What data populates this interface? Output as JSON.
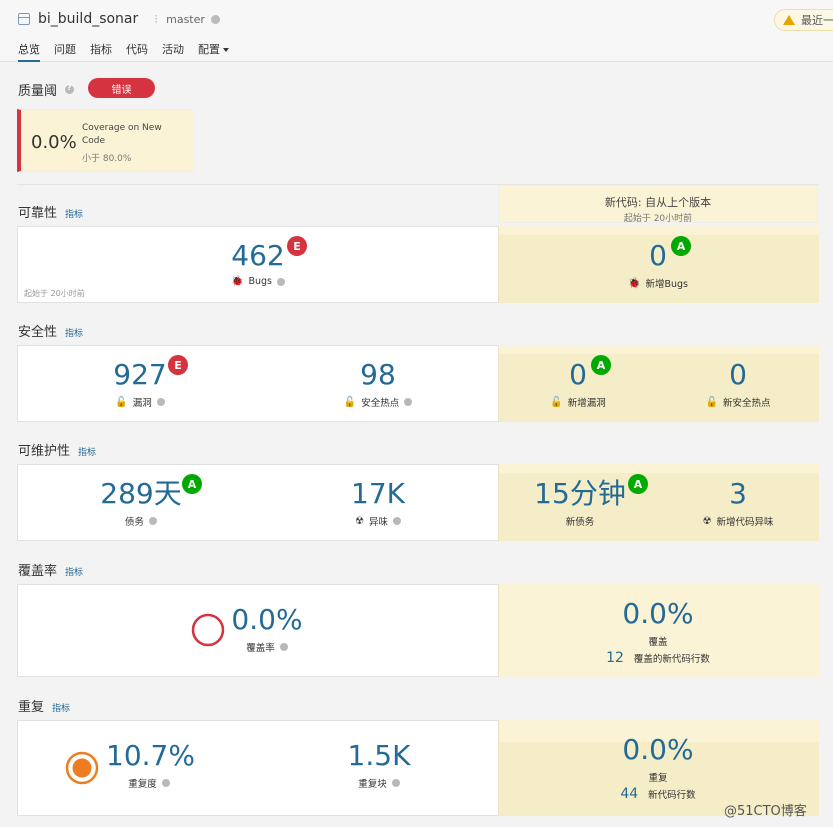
{
  "header": {
    "project_name": "bi_build_sonar",
    "branch": "master",
    "warning_text": "最近一",
    "tabs": [
      {
        "label": "总览",
        "active": true
      },
      {
        "label": "问题",
        "active": false
      },
      {
        "label": "指标",
        "active": false
      },
      {
        "label": "代码",
        "active": false
      },
      {
        "label": "活动",
        "active": false
      },
      {
        "label": "配置",
        "active": false
      }
    ]
  },
  "quality_gate": {
    "title": "质量阈",
    "status": "错误",
    "condition": {
      "value": "0.0%",
      "name": "Coverage on New Code",
      "threshold": "小于 80.0%"
    }
  },
  "new_code": {
    "title": "新代码: 自从上个版本",
    "since": "起始于 20小时前"
  },
  "reliability": {
    "title": "可靠性",
    "link": "指标",
    "since": "起始于 20小时前",
    "bugs": {
      "value": "462",
      "label": "Bugs",
      "rating": "E"
    },
    "new_bugs": {
      "value": "0",
      "label": "新增Bugs",
      "rating": "A"
    }
  },
  "security": {
    "title": "安全性",
    "link": "指标",
    "vulnerabilities": {
      "value": "927",
      "label": "漏洞",
      "rating": "E"
    },
    "hotspots": {
      "value": "98",
      "label": "安全热点"
    },
    "new_vulnerabilities": {
      "value": "0",
      "label": "新增漏洞",
      "rating": "A"
    },
    "new_hotspots": {
      "value": "0",
      "label": "新安全热点"
    }
  },
  "maintainability": {
    "title": "可维护性",
    "link": "指标",
    "debt": {
      "value_num": "289",
      "value_unit": "天",
      "label": "债务",
      "rating": "A"
    },
    "smells": {
      "value": "17K",
      "label": "异味"
    },
    "new_debt": {
      "value_num": "15",
      "value_unit": "分钟",
      "label": "新债务",
      "rating": "A"
    },
    "new_smells": {
      "value": "3",
      "label": "新增代码异味"
    }
  },
  "coverage": {
    "title": "覆盖率",
    "link": "指标",
    "overall": {
      "value": "0.0%",
      "label": "覆盖率",
      "fraction": 0.0
    },
    "new": {
      "value": "0.0%",
      "label": "覆盖",
      "lines_count": "12",
      "lines_label": "覆盖的新代码行数"
    }
  },
  "duplications": {
    "title": "重复",
    "link": "指标",
    "density": {
      "value": "10.7%",
      "label": "重复度"
    },
    "blocks": {
      "value": "1.5K",
      "label": "重复块"
    },
    "new": {
      "value": "0.0%",
      "label": "重复",
      "lines_count": "44",
      "lines_label": "新代码行数"
    }
  },
  "watermark": "@51CTO博客",
  "colors": {
    "accent": "#236a97",
    "error": "#d4333f",
    "rating_a": "#00aa00",
    "new_code_bg": "#fbf3d5",
    "duplication_ring": "#ed7d20"
  }
}
